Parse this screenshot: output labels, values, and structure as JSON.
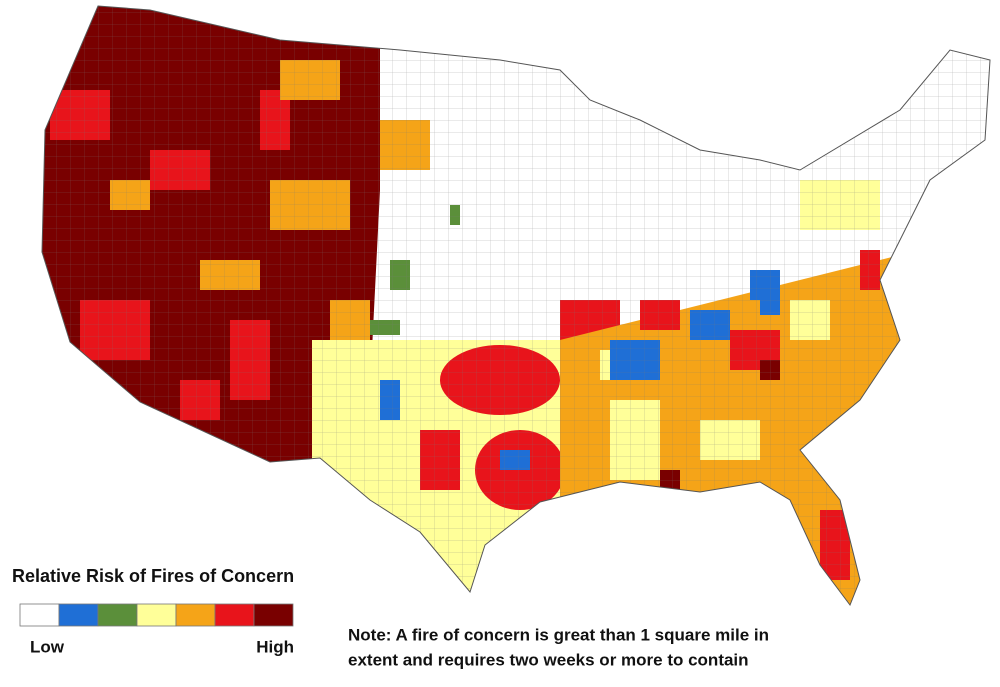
{
  "legend": {
    "title": "Relative Risk of Fires of Concern",
    "colors": [
      "#ffffff",
      "#1f6fd6",
      "#5b8f3a",
      "#ffff99",
      "#f5a418",
      "#e8141b",
      "#790000"
    ],
    "low_label": "Low",
    "high_label": "High"
  },
  "note": {
    "lines": [
      "Note: A fire of concern is great than 1 square mile in",
      "extent and requires two weeks or more to contain"
    ]
  }
}
